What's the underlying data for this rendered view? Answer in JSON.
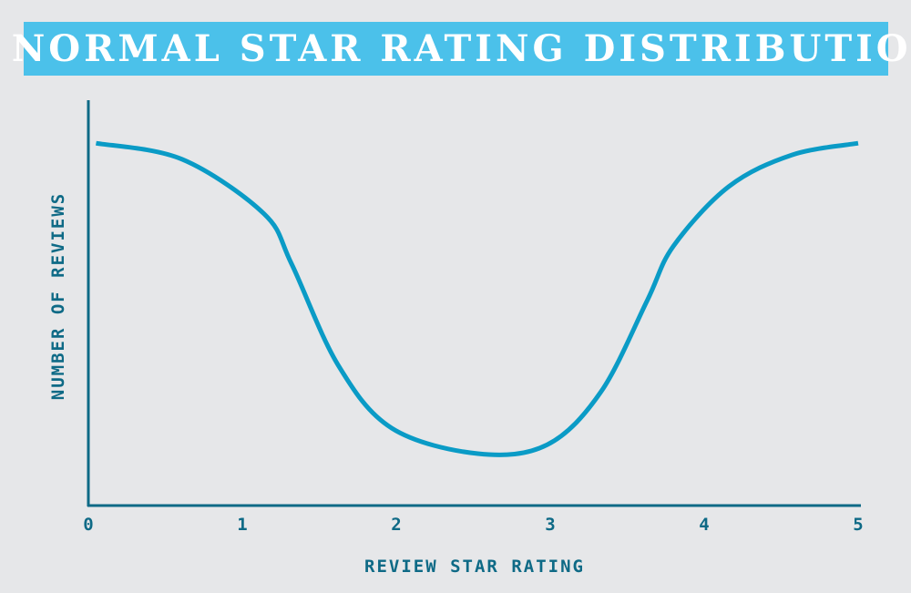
{
  "chart_data": {
    "type": "line",
    "title": "A NORMAL STAR RATING DISTRIBUTION",
    "xlabel": "REVIEW STAR RATING",
    "ylabel": "NUMBER OF REVIEWS",
    "xlim": [
      0,
      5
    ],
    "ylim": [
      0,
      100
    ],
    "xticks": [
      "0",
      "1",
      "2",
      "3",
      "4",
      "5"
    ],
    "grid": false,
    "series": [
      {
        "x": [
          0.05,
          0.61,
          1.14,
          1.32,
          1.62,
          1.97,
          2.53,
          2.98,
          3.33,
          3.63,
          3.8,
          4.16,
          4.57,
          5.0
        ],
        "y": [
          89.4,
          85.4,
          72.0,
          59.6,
          34.8,
          19.1,
          12.8,
          15.0,
          28.1,
          50.6,
          64.0,
          78.7,
          86.5,
          89.4
        ]
      }
    ],
    "colors": {
      "title_bg": "#4bc1ea",
      "title_text": "#ffffff",
      "axis": "#0e6a86",
      "line": "#0a9bc6",
      "background": "#e6e7e9"
    }
  }
}
